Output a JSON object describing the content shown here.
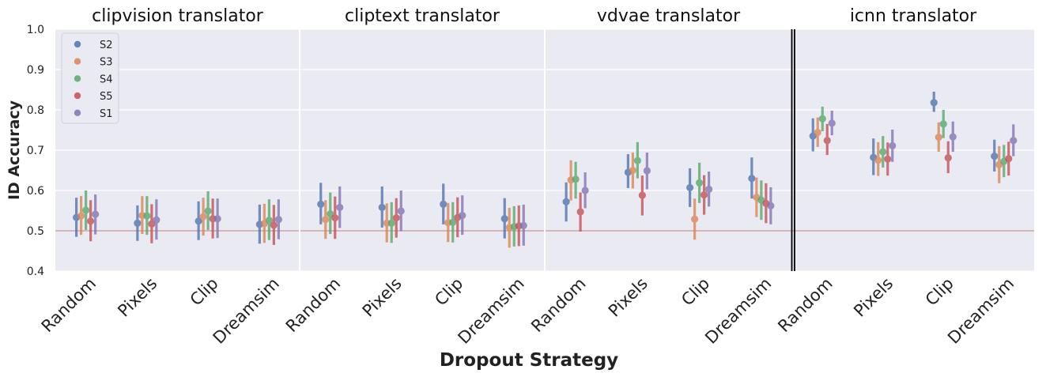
{
  "chart_data": {
    "type": "pointplot",
    "xlabel": "Dropout Strategy",
    "ylabel": "ID Accuracy",
    "ylim": [
      0.4,
      1.0
    ],
    "yticks": [
      "0.4",
      "0.5",
      "0.6",
      "0.7",
      "0.8",
      "0.9",
      "1.0"
    ],
    "yticks_values": [
      0.4,
      0.5,
      0.6,
      0.7,
      0.8,
      0.9,
      1.0
    ],
    "reference_line": 0.5,
    "grid": true,
    "legend_position": "top-left",
    "legend": [
      "S2",
      "S3",
      "S4",
      "S5",
      "S1"
    ],
    "series_colors": [
      "#4c72b0",
      "#dd8452",
      "#55a868",
      "#c44e52",
      "#8172b3"
    ],
    "categories": [
      "Random",
      "Pixels",
      "Clip",
      "Dreamsim"
    ],
    "panels": [
      {
        "title": "clipvision translator",
        "series": [
          {
            "name": "S2",
            "values": [
              0.533,
              0.519,
              0.524,
              0.516
            ],
            "lower": [
              0.485,
              0.475,
              0.477,
              0.468
            ],
            "upper": [
              0.582,
              0.563,
              0.573,
              0.565
            ]
          },
          {
            "name": "S3",
            "values": [
              0.537,
              0.538,
              0.535,
              0.518
            ],
            "lower": [
              0.49,
              0.492,
              0.488,
              0.47
            ],
            "upper": [
              0.586,
              0.586,
              0.582,
              0.567
            ]
          },
          {
            "name": "S4",
            "values": [
              0.551,
              0.537,
              0.549,
              0.526
            ],
            "lower": [
              0.502,
              0.49,
              0.502,
              0.477
            ],
            "upper": [
              0.6,
              0.586,
              0.598,
              0.578
            ]
          },
          {
            "name": "S5",
            "values": [
              0.524,
              0.517,
              0.53,
              0.514
            ],
            "lower": [
              0.474,
              0.469,
              0.481,
              0.465
            ],
            "upper": [
              0.576,
              0.566,
              0.58,
              0.564
            ]
          },
          {
            "name": "S1",
            "values": [
              0.541,
              0.527,
              0.53,
              0.528
            ],
            "lower": [
              0.491,
              0.478,
              0.482,
              0.479
            ],
            "upper": [
              0.59,
              0.578,
              0.58,
              0.578
            ]
          }
        ]
      },
      {
        "title": "cliptext translator",
        "series": [
          {
            "name": "S2",
            "values": [
              0.566,
              0.558,
              0.566,
              0.53
            ],
            "lower": [
              0.516,
              0.508,
              0.516,
              0.481
            ],
            "upper": [
              0.619,
              0.61,
              0.617,
              0.581
            ]
          },
          {
            "name": "S3",
            "values": [
              0.528,
              0.519,
              0.52,
              0.508
            ],
            "lower": [
              0.48,
              0.471,
              0.472,
              0.458
            ],
            "upper": [
              0.576,
              0.568,
              0.569,
              0.557
            ]
          },
          {
            "name": "S4",
            "values": [
              0.542,
              0.519,
              0.521,
              0.51
            ],
            "lower": [
              0.492,
              0.47,
              0.471,
              0.461
            ],
            "upper": [
              0.595,
              0.571,
              0.571,
              0.561
            ]
          },
          {
            "name": "S5",
            "values": [
              0.532,
              0.532,
              0.533,
              0.512
            ],
            "lower": [
              0.48,
              0.483,
              0.484,
              0.462
            ],
            "upper": [
              0.585,
              0.581,
              0.583,
              0.563
            ]
          },
          {
            "name": "S1",
            "values": [
              0.558,
              0.549,
              0.538,
              0.513
            ],
            "lower": [
              0.507,
              0.499,
              0.49,
              0.463
            ],
            "upper": [
              0.61,
              0.6,
              0.588,
              0.565
            ]
          }
        ]
      },
      {
        "title": "vdvae translator",
        "series": [
          {
            "name": "S2",
            "values": [
              0.572,
              0.645,
              0.607,
              0.63
            ],
            "lower": [
              0.523,
              0.606,
              0.559,
              0.58
            ],
            "upper": [
              0.62,
              0.69,
              0.655,
              0.682
            ]
          },
          {
            "name": "S3",
            "values": [
              0.626,
              0.65,
              0.529,
              0.583
            ],
            "lower": [
              0.575,
              0.605,
              0.478,
              0.534
            ],
            "upper": [
              0.675,
              0.694,
              0.58,
              0.632
            ]
          },
          {
            "name": "S4",
            "values": [
              0.628,
              0.674,
              0.619,
              0.576
            ],
            "lower": [
              0.58,
              0.63,
              0.569,
              0.527
            ],
            "upper": [
              0.671,
              0.72,
              0.669,
              0.625
            ]
          },
          {
            "name": "S5",
            "values": [
              0.547,
              0.588,
              0.589,
              0.568
            ],
            "lower": [
              0.498,
              0.538,
              0.54,
              0.519
            ],
            "upper": [
              0.595,
              0.637,
              0.638,
              0.618
            ]
          },
          {
            "name": "S1",
            "values": [
              0.6,
              0.649,
              0.603,
              0.562
            ],
            "lower": [
              0.556,
              0.603,
              0.56,
              0.516
            ],
            "upper": [
              0.645,
              0.694,
              0.647,
              0.608
            ]
          }
        ]
      },
      {
        "title": "icnn translator",
        "series": [
          {
            "name": "S2",
            "values": [
              0.735,
              0.682,
              0.818,
              0.685
            ],
            "lower": [
              0.697,
              0.638,
              0.795,
              0.647
            ],
            "upper": [
              0.779,
              0.729,
              0.845,
              0.726
            ]
          },
          {
            "name": "S3",
            "values": [
              0.744,
              0.675,
              0.732,
              0.664
            ],
            "lower": [
              0.708,
              0.636,
              0.696,
              0.618
            ],
            "upper": [
              0.781,
              0.72,
              0.769,
              0.71
            ]
          },
          {
            "name": "S4",
            "values": [
              0.778,
              0.696,
              0.765,
              0.672
            ],
            "lower": [
              0.747,
              0.657,
              0.73,
              0.633
            ],
            "upper": [
              0.808,
              0.735,
              0.8,
              0.713
            ]
          },
          {
            "name": "S5",
            "values": [
              0.724,
              0.678,
              0.681,
              0.679
            ],
            "lower": [
              0.688,
              0.637,
              0.643,
              0.637
            ],
            "upper": [
              0.765,
              0.719,
              0.722,
              0.721
            ]
          },
          {
            "name": "S1",
            "values": [
              0.767,
              0.711,
              0.733,
              0.724
            ],
            "lower": [
              0.737,
              0.671,
              0.696,
              0.685
            ],
            "upper": [
              0.798,
              0.751,
              0.771,
              0.764
            ]
          }
        ]
      }
    ]
  }
}
